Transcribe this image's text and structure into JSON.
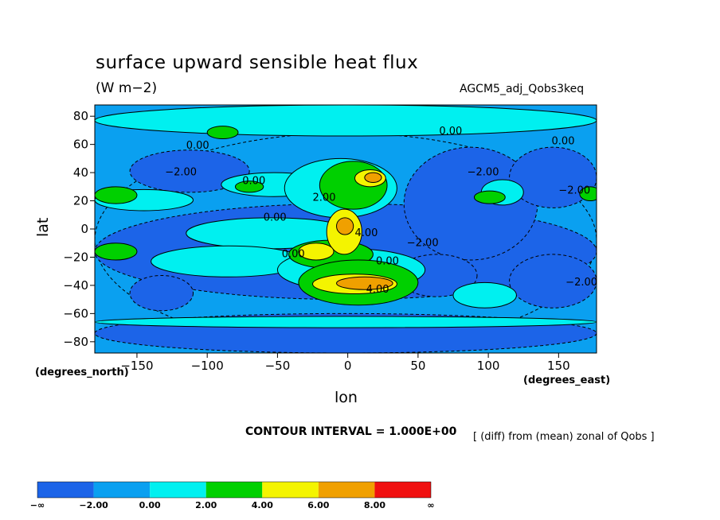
{
  "chart_data": {
    "type": "heatmap",
    "title": "surface upward sensible heat flux",
    "units": "(W m−2)",
    "run_label": "AGCM5_adj_Qobs3keq",
    "xlabel": "lon",
    "ylabel": "lat",
    "x_unit_label": "(degrees_east)",
    "y_unit_label": "(degrees_north)",
    "xlim": [
      -180,
      177
    ],
    "ylim": [
      -88,
      88
    ],
    "x_ticks": [
      -150,
      -100,
      -50,
      0,
      50,
      100,
      150
    ],
    "x_tick_labels": [
      "−150",
      "−100",
      "−50",
      "0",
      "50",
      "100",
      "150"
    ],
    "y_ticks": [
      80,
      60,
      40,
      20,
      0,
      -20,
      -40,
      -60,
      -80
    ],
    "y_tick_labels": [
      "80",
      "60",
      "40",
      "20",
      "0",
      "−20",
      "−40",
      "−60",
      "−80"
    ],
    "contour_interval_text": "CONTOUR INTERVAL = 1.000E+00",
    "diff_text": "[ (diff) from (mean) zonal of Qobs ]",
    "contour_labels": [
      {
        "text": "0.00",
        "lon": -115,
        "lat": 57
      },
      {
        "text": "−2.00",
        "lon": -130,
        "lat": 38
      },
      {
        "text": "0.00",
        "lon": -75,
        "lat": 32
      },
      {
        "text": "2.00",
        "lon": -25,
        "lat": 20
      },
      {
        "text": "0.00",
        "lon": -60,
        "lat": 6
      },
      {
        "text": "0.00",
        "lon": 65,
        "lat": 67
      },
      {
        "text": "−2.00",
        "lon": 85,
        "lat": 38
      },
      {
        "text": "0.00",
        "lon": 145,
        "lat": 60
      },
      {
        "text": "−2.00",
        "lon": 150,
        "lat": 25
      },
      {
        "text": "−2.00",
        "lon": 42,
        "lat": -12
      },
      {
        "text": "4.00",
        "lon": 5,
        "lat": -5
      },
      {
        "text": "0.00",
        "lon": 20,
        "lat": -25
      },
      {
        "text": "0.00",
        "lon": -47,
        "lat": -20
      },
      {
        "text": "4.00",
        "lon": 13,
        "lat": -45
      },
      {
        "text": "−2.00",
        "lon": 155,
        "lat": -40
      }
    ],
    "color_levels": [
      {
        "label": "−∞",
        "color": "#1c64e8"
      },
      {
        "label": "−2.00",
        "color": "#0aa0f0"
      },
      {
        "label": "0.00",
        "color": "#00f0f0"
      },
      {
        "label": "2.00",
        "color": "#00d000"
      },
      {
        "label": "4.00",
        "color": "#f4f400"
      },
      {
        "label": "6.00",
        "color": "#f0a000"
      },
      {
        "label": "8.00",
        "color": "#f01010"
      },
      {
        "label": "∞",
        "color": ""
      }
    ],
    "features": [
      {
        "level": 1,
        "lon": -180,
        "lat": 68,
        "w": 357,
        "h": 152
      },
      {
        "level": 0,
        "lon": -180,
        "lat": 18,
        "w": 357,
        "h": 68
      },
      {
        "level": 0,
        "lon": -180,
        "lat": -60,
        "w": 357,
        "h": 28
      },
      {
        "level": 0,
        "lon": -155,
        "lat": 56,
        "w": 85,
        "h": 30
      },
      {
        "level": 0,
        "lon": 40,
        "lat": 58,
        "w": 95,
        "h": 80
      },
      {
        "level": 0,
        "lon": 115,
        "lat": 58,
        "w": 62,
        "h": 43
      },
      {
        "level": 0,
        "lon": 35,
        "lat": -18,
        "w": 57,
        "h": 30
      },
      {
        "level": 0,
        "lon": -155,
        "lat": -33,
        "w": 45,
        "h": 25
      },
      {
        "level": 0,
        "lon": 115,
        "lat": -18,
        "w": 62,
        "h": 38
      },
      {
        "level": 2,
        "lon": -180,
        "lat": 88,
        "w": 357,
        "h": 22
      },
      {
        "level": 2,
        "lon": -180,
        "lat": 28,
        "w": 70,
        "h": 15
      },
      {
        "level": 2,
        "lon": -90,
        "lat": 40,
        "w": 75,
        "h": 17
      },
      {
        "level": 2,
        "lon": -115,
        "lat": 8,
        "w": 120,
        "h": 22
      },
      {
        "level": 2,
        "lon": -180,
        "lat": -62,
        "w": 357,
        "h": 8
      },
      {
        "level": 2,
        "lon": -140,
        "lat": -12,
        "w": 110,
        "h": 22
      },
      {
        "level": 2,
        "lon": 75,
        "lat": -38,
        "w": 45,
        "h": 18
      },
      {
        "level": 2,
        "lon": 95,
        "lat": 35,
        "w": 30,
        "h": 18
      },
      {
        "level": 2,
        "lon": -50,
        "lat": -14,
        "w": 105,
        "h": 30
      },
      {
        "level": 2,
        "lon": -45,
        "lat": 50,
        "w": 80,
        "h": 42
      },
      {
        "level": 3,
        "lon": -180,
        "lat": 30,
        "w": 30,
        "h": 12
      },
      {
        "level": 3,
        "lon": -180,
        "lat": -10,
        "w": 30,
        "h": 12
      },
      {
        "level": 3,
        "lon": -100,
        "lat": 73,
        "w": 22,
        "h": 9
      },
      {
        "level": 3,
        "lon": -80,
        "lat": 34,
        "w": 20,
        "h": 8
      },
      {
        "level": 3,
        "lon": 90,
        "lat": 27,
        "w": 22,
        "h": 9
      },
      {
        "level": 3,
        "lon": 165,
        "lat": 30,
        "w": 15,
        "h": 10
      },
      {
        "level": 3,
        "lon": -20,
        "lat": 48,
        "w": 48,
        "h": 34
      },
      {
        "level": 3,
        "lon": -42,
        "lat": -8,
        "w": 60,
        "h": 20
      },
      {
        "level": 3,
        "lon": -35,
        "lat": -22,
        "w": 85,
        "h": 32
      },
      {
        "level": 4,
        "lon": -15,
        "lat": 14,
        "w": 25,
        "h": 32
      },
      {
        "level": 4,
        "lon": -35,
        "lat": -10,
        "w": 25,
        "h": 12
      },
      {
        "level": 4,
        "lon": 5,
        "lat": 42,
        "w": 22,
        "h": 12
      },
      {
        "level": 4,
        "lon": -25,
        "lat": -32,
        "w": 60,
        "h": 14
      },
      {
        "level": 5,
        "lon": -8,
        "lat": 8,
        "w": 12,
        "h": 12
      },
      {
        "level": 5,
        "lon": 12,
        "lat": 40,
        "w": 12,
        "h": 7
      },
      {
        "level": 5,
        "lon": -8,
        "lat": -34,
        "w": 40,
        "h": 9
      }
    ]
  }
}
